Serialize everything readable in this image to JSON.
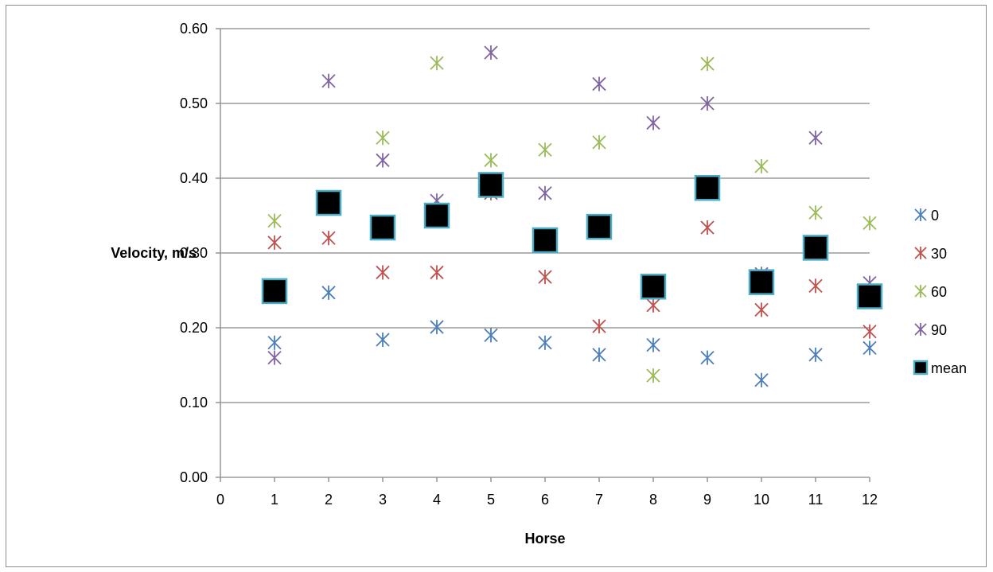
{
  "chart_data": {
    "type": "scatter",
    "xlabel": "Horse",
    "ylabel": "Velocity, m/s",
    "xlim": [
      0,
      12
    ],
    "ylim": [
      0,
      0.6
    ],
    "x_ticks": [
      "0",
      "1",
      "2",
      "3",
      "4",
      "5",
      "6",
      "7",
      "8",
      "9",
      "10",
      "11",
      "12"
    ],
    "y_ticks": [
      "0.00",
      "0.10",
      "0.20",
      "0.30",
      "0.40",
      "0.50",
      "0.60"
    ],
    "grid": "horizontal",
    "legend_position": "right",
    "series": [
      {
        "name": "0",
        "color": "#4a7ebb",
        "marker": "asterisk",
        "x": [
          1,
          2,
          3,
          4,
          5,
          6,
          7,
          8,
          9,
          10,
          11,
          12
        ],
        "y": [
          0.18,
          0.247,
          0.184,
          0.201,
          0.19,
          0.18,
          0.164,
          0.177,
          0.16,
          0.13,
          0.164,
          0.173
        ]
      },
      {
        "name": "30",
        "color": "#c0504d",
        "marker": "asterisk",
        "x": [
          1,
          2,
          3,
          4,
          5,
          6,
          7,
          8,
          9,
          10,
          11,
          12
        ],
        "y": [
          0.314,
          0.32,
          0.274,
          0.274,
          0.38,
          0.268,
          0.202,
          0.23,
          0.334,
          0.224,
          0.256,
          0.195
        ]
      },
      {
        "name": "60",
        "color": "#9bbb59",
        "marker": "asterisk",
        "x": [
          1,
          2,
          3,
          4,
          5,
          6,
          7,
          8,
          9,
          10,
          11,
          12
        ],
        "y": [
          0.343,
          0.367,
          0.454,
          0.554,
          0.424,
          0.438,
          0.448,
          0.136,
          0.553,
          0.416,
          0.354,
          0.34
        ]
      },
      {
        "name": "90",
        "color": "#8064a2",
        "marker": "asterisk",
        "x": [
          1,
          2,
          3,
          4,
          5,
          6,
          7,
          8,
          9,
          10,
          11,
          12
        ],
        "y": [
          0.16,
          0.53,
          0.424,
          0.37,
          0.568,
          0.38,
          0.526,
          0.474,
          0.5,
          0.272,
          0.454,
          0.26
        ]
      },
      {
        "name": "mean",
        "color": "#000000",
        "edge_color": "#4bacc6",
        "marker": "square",
        "x": [
          1,
          2,
          3,
          4,
          5,
          6,
          7,
          8,
          9,
          10,
          11,
          12
        ],
        "y": [
          0.249,
          0.367,
          0.334,
          0.35,
          0.391,
          0.317,
          0.335,
          0.255,
          0.387,
          0.261,
          0.307,
          0.242
        ]
      }
    ]
  }
}
